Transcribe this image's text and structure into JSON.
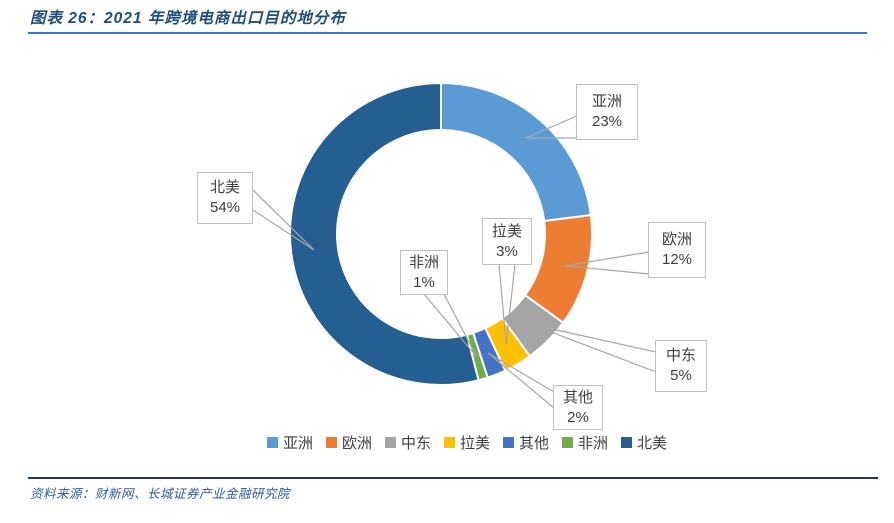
{
  "title": {
    "text": "图表 26：2021 年跨境电商出口目的地分布"
  },
  "source": {
    "text": "资料来源：财新网、长城证券产业金融研究院"
  },
  "colors": {
    "title_text": "#1F4E79",
    "source_text": "#2E5B97",
    "rule_top": "#4472C4",
    "rule_bottom": "#1F3864",
    "callout_border": "#BFBFBF",
    "callout_text": "#404040",
    "leader_line": "#A6A6A6",
    "slice_gap": "#FFFFFF"
  },
  "chart_data": {
    "type": "pie",
    "subtype": "donut",
    "title": "2021 年跨境电商出口目的地分布",
    "unit": "%",
    "direction": "clockwise",
    "start_angle_deg": 0,
    "hole_ratio": 0.69,
    "legend_position": "bottom",
    "slices": [
      {
        "label": "亚洲",
        "value": 23,
        "pct_label": "23%",
        "color": "#5B9BD5"
      },
      {
        "label": "欧洲",
        "value": 12,
        "pct_label": "12%",
        "color": "#ED7D31"
      },
      {
        "label": "中东",
        "value": 5,
        "pct_label": "5%",
        "color": "#A5A5A5"
      },
      {
        "label": "拉美",
        "value": 3,
        "pct_label": "3%",
        "color": "#FFC000"
      },
      {
        "label": "其他",
        "value": 2,
        "pct_label": "2%",
        "color": "#4472C4"
      },
      {
        "label": "非洲",
        "value": 1,
        "pct_label": "1%",
        "color": "#70AD47"
      },
      {
        "label": "北美",
        "value": 54,
        "pct_label": "54%",
        "color": "#255E91"
      }
    ]
  }
}
